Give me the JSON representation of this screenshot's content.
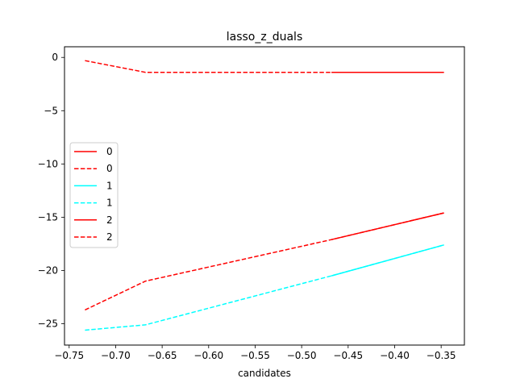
{
  "chart_data": {
    "type": "line",
    "title": "lasso_z_duals",
    "xlabel": "candidates",
    "ylabel": "",
    "xlim": [
      -0.755,
      -0.325
    ],
    "ylim": [
      -27,
      1
    ],
    "xticks": [
      -0.75,
      -0.7,
      -0.65,
      -0.6,
      -0.55,
      -0.5,
      -0.45,
      -0.4,
      -0.35
    ],
    "xtick_labels": [
      "−0.75",
      "−0.70",
      "−0.65",
      "−0.60",
      "−0.55",
      "−0.50",
      "−0.45",
      "−0.40",
      "−0.35"
    ],
    "yticks": [
      0,
      -5,
      -10,
      -15,
      -20,
      -25
    ],
    "ytick_labels": [
      "0",
      "−5",
      "−10",
      "−15",
      "−20",
      "−25"
    ],
    "grid": false,
    "legend_position": "center-left",
    "series": [
      {
        "name": "0",
        "color": "#ff0000",
        "style": "solid",
        "x": [
          -0.468,
          -0.347
        ],
        "y": [
          -1.4,
          -1.4
        ]
      },
      {
        "name": "0",
        "color": "#ff0000",
        "style": "dashed",
        "x": [
          -0.733,
          -0.668,
          -0.468,
          -0.347
        ],
        "y": [
          -0.3,
          -1.4,
          -1.4,
          -1.4
        ]
      },
      {
        "name": "1",
        "color": "#00ffff",
        "style": "solid",
        "x": [
          -0.468,
          -0.347
        ],
        "y": [
          -20.5,
          -17.6
        ]
      },
      {
        "name": "1",
        "color": "#00ffff",
        "style": "dashed",
        "x": [
          -0.733,
          -0.668,
          -0.468,
          -0.347
        ],
        "y": [
          -25.6,
          -25.1,
          -20.5,
          -17.6
        ]
      },
      {
        "name": "2",
        "color": "#ff0000",
        "style": "solid",
        "x": [
          -0.468,
          -0.347
        ],
        "y": [
          -17.1,
          -14.6
        ]
      },
      {
        "name": "2",
        "color": "#ff0000",
        "style": "dashed",
        "x": [
          -0.733,
          -0.668,
          -0.468,
          -0.347
        ],
        "y": [
          -23.7,
          -21.0,
          -17.1,
          -14.6
        ]
      }
    ]
  }
}
